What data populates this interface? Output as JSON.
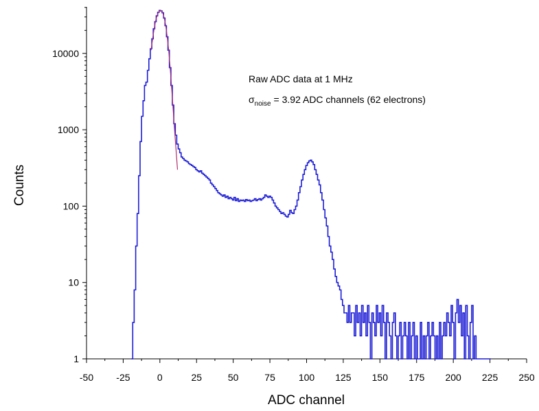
{
  "chart_data": {
    "type": "line",
    "title": "",
    "xlabel": "ADC channel",
    "ylabel": "Counts",
    "xlim": [
      -50,
      250
    ],
    "ylim": [
      1,
      40000
    ],
    "y_scale": "log",
    "grid": false,
    "x_ticks": [
      "-50",
      "-25",
      "0",
      "25",
      "50",
      "75",
      "100",
      "125",
      "150",
      "175",
      "200",
      "225",
      "250"
    ],
    "y_ticks": [
      "1",
      "10",
      "100",
      "1000",
      "10000"
    ],
    "annotations": {
      "line1": "Raw ADC data at 1 MHz",
      "sigma_symbol": "σ",
      "sigma_subscript": "noise",
      "line2_rest": "= 3.92 ADC channels (62 electrons)"
    },
    "series": [
      {
        "color": "#1a1ad6",
        "style": "histogram-step",
        "points": [
          [
            -19,
            1
          ],
          [
            -18,
            3
          ],
          [
            -17,
            8
          ],
          [
            -16,
            30
          ],
          [
            -15,
            80
          ],
          [
            -14,
            250
          ],
          [
            -13,
            700
          ],
          [
            -12,
            1500
          ],
          [
            -11,
            2400
          ],
          [
            -10,
            3800
          ],
          [
            -9,
            4200
          ],
          [
            -8,
            6000
          ],
          [
            -7,
            8500
          ],
          [
            -6,
            11500
          ],
          [
            -5,
            15500
          ],
          [
            -4,
            21000
          ],
          [
            -3,
            26000
          ],
          [
            -2,
            31000
          ],
          [
            -1,
            34500
          ],
          [
            0,
            36500
          ],
          [
            1,
            36000
          ],
          [
            2,
            34000
          ],
          [
            3,
            29000
          ],
          [
            4,
            23000
          ],
          [
            5,
            16500
          ],
          [
            6,
            11000
          ],
          [
            7,
            6500
          ],
          [
            8,
            3800
          ],
          [
            9,
            2100
          ],
          [
            10,
            1200
          ],
          [
            11,
            850
          ],
          [
            12,
            650
          ],
          [
            13,
            560
          ],
          [
            14,
            500
          ],
          [
            15,
            440
          ],
          [
            16,
            420
          ],
          [
            17,
            400
          ],
          [
            18,
            390
          ],
          [
            19,
            380
          ],
          [
            20,
            360
          ],
          [
            21,
            350
          ],
          [
            22,
            340
          ],
          [
            23,
            330
          ],
          [
            24,
            320
          ],
          [
            25,
            300
          ],
          [
            26,
            290
          ],
          [
            27,
            280
          ],
          [
            28,
            290
          ],
          [
            29,
            270
          ],
          [
            30,
            260
          ],
          [
            31,
            250
          ],
          [
            32,
            240
          ],
          [
            33,
            230
          ],
          [
            34,
            220
          ],
          [
            35,
            200
          ],
          [
            36,
            190
          ],
          [
            37,
            180
          ],
          [
            38,
            170
          ],
          [
            39,
            160
          ],
          [
            40,
            150
          ],
          [
            41,
            145
          ],
          [
            42,
            140
          ],
          [
            43,
            135
          ],
          [
            44,
            140
          ],
          [
            45,
            130
          ],
          [
            46,
            135
          ],
          [
            47,
            125
          ],
          [
            48,
            130
          ],
          [
            49,
            125
          ],
          [
            50,
            120
          ],
          [
            51,
            130
          ],
          [
            52,
            118
          ],
          [
            53,
            125
          ],
          [
            54,
            115
          ],
          [
            55,
            120
          ],
          [
            56,
            118
          ],
          [
            57,
            120
          ],
          [
            58,
            115
          ],
          [
            59,
            122
          ],
          [
            60,
            118
          ],
          [
            61,
            120
          ],
          [
            62,
            115
          ],
          [
            63,
            118
          ],
          [
            64,
            120
          ],
          [
            65,
            125
          ],
          [
            66,
            118
          ],
          [
            67,
            122
          ],
          [
            68,
            125
          ],
          [
            69,
            120
          ],
          [
            70,
            125
          ],
          [
            71,
            130
          ],
          [
            72,
            140
          ],
          [
            73,
            135
          ],
          [
            74,
            130
          ],
          [
            75,
            135
          ],
          [
            76,
            130
          ],
          [
            77,
            120
          ],
          [
            78,
            110
          ],
          [
            79,
            100
          ],
          [
            80,
            95
          ],
          [
            81,
            90
          ],
          [
            82,
            85
          ],
          [
            83,
            80
          ],
          [
            84,
            82
          ],
          [
            85,
            78
          ],
          [
            86,
            74
          ],
          [
            87,
            72
          ],
          [
            88,
            78
          ],
          [
            89,
            88
          ],
          [
            90,
            82
          ],
          [
            91,
            80
          ],
          [
            92,
            90
          ],
          [
            93,
            100
          ],
          [
            94,
            120
          ],
          [
            95,
            150
          ],
          [
            96,
            180
          ],
          [
            97,
            220
          ],
          [
            98,
            260
          ],
          [
            99,
            300
          ],
          [
            100,
            340
          ],
          [
            101,
            370
          ],
          [
            102,
            390
          ],
          [
            103,
            400
          ],
          [
            104,
            380
          ],
          [
            105,
            350
          ],
          [
            106,
            300
          ],
          [
            107,
            260
          ],
          [
            108,
            220
          ],
          [
            109,
            190
          ],
          [
            110,
            150
          ],
          [
            111,
            120
          ],
          [
            112,
            90
          ],
          [
            113,
            70
          ],
          [
            114,
            55
          ],
          [
            115,
            40
          ],
          [
            116,
            30
          ],
          [
            117,
            25
          ],
          [
            118,
            20
          ],
          [
            119,
            15
          ],
          [
            120,
            12
          ],
          [
            121,
            10
          ],
          [
            122,
            9
          ],
          [
            123,
            8
          ],
          [
            124,
            6
          ],
          [
            125,
            5
          ],
          [
            126,
            4
          ],
          [
            127,
            4
          ],
          [
            128,
            3
          ],
          [
            129,
            5
          ],
          [
            130,
            3
          ],
          [
            131,
            4
          ],
          [
            132,
            4
          ],
          [
            133,
            2
          ],
          [
            134,
            5
          ],
          [
            135,
            3
          ],
          [
            136,
            4
          ],
          [
            137,
            2
          ],
          [
            138,
            5
          ],
          [
            139,
            3
          ],
          [
            140,
            4
          ],
          [
            141,
            2
          ],
          [
            142,
            5
          ],
          [
            143,
            3
          ],
          [
            144,
            1
          ],
          [
            145,
            4
          ],
          [
            146,
            3
          ],
          [
            147,
            2
          ],
          [
            148,
            5
          ],
          [
            149,
            3
          ],
          [
            150,
            4
          ],
          [
            151,
            2
          ],
          [
            152,
            5
          ],
          [
            153,
            3
          ],
          [
            154,
            1
          ],
          [
            155,
            4
          ],
          [
            156,
            3
          ],
          [
            157,
            2
          ],
          [
            158,
            1
          ],
          [
            159,
            3
          ],
          [
            160,
            4
          ],
          [
            161,
            2
          ],
          [
            162,
            1
          ],
          [
            163,
            2
          ],
          [
            164,
            3
          ],
          [
            165,
            1
          ],
          [
            166,
            2
          ],
          [
            167,
            3
          ],
          [
            168,
            2
          ],
          [
            169,
            1
          ],
          [
            170,
            3
          ],
          [
            171,
            1
          ],
          [
            172,
            2
          ],
          [
            173,
            3
          ],
          [
            174,
            1
          ],
          [
            175,
            2
          ],
          [
            176,
            1
          ],
          [
            177,
            1
          ],
          [
            178,
            3
          ],
          [
            179,
            1
          ],
          [
            180,
            2
          ],
          [
            181,
            1
          ],
          [
            182,
            2
          ],
          [
            183,
            3
          ],
          [
            184,
            1
          ],
          [
            185,
            2
          ],
          [
            186,
            3
          ],
          [
            187,
            2
          ],
          [
            188,
            1
          ],
          [
            189,
            2
          ],
          [
            190,
            1
          ],
          [
            191,
            3
          ],
          [
            192,
            1
          ],
          [
            193,
            2
          ],
          [
            194,
            3
          ],
          [
            195,
            2
          ],
          [
            196,
            4
          ],
          [
            197,
            3
          ],
          [
            198,
            2
          ],
          [
            199,
            5
          ],
          [
            200,
            3
          ],
          [
            201,
            1
          ],
          [
            202,
            4
          ],
          [
            203,
            6
          ],
          [
            204,
            3
          ],
          [
            205,
            5
          ],
          [
            206,
            2
          ],
          [
            207,
            4
          ],
          [
            208,
            1
          ],
          [
            209,
            5
          ],
          [
            210,
            2
          ],
          [
            211,
            1
          ],
          [
            212,
            3
          ],
          [
            213,
            5
          ],
          [
            214,
            1
          ],
          [
            215,
            2
          ],
          [
            216,
            1
          ],
          [
            217,
            1
          ],
          [
            218,
            1
          ],
          [
            219,
            1
          ],
          [
            220,
            1
          ],
          [
            222,
            1
          ],
          [
            225,
            1
          ]
        ]
      },
      {
        "color": "#b03070",
        "style": "line",
        "points": [
          [
            -6,
            11000
          ],
          [
            -5,
            15000
          ],
          [
            -4,
            20500
          ],
          [
            -3,
            26000
          ],
          [
            -2,
            31000
          ],
          [
            -1,
            34500
          ],
          [
            0,
            36500
          ],
          [
            1,
            36000
          ],
          [
            2,
            34000
          ],
          [
            3,
            29000
          ],
          [
            4,
            23000
          ],
          [
            5,
            16500
          ],
          [
            6,
            11000
          ],
          [
            7,
            6500
          ],
          [
            8,
            3600
          ],
          [
            9,
            1900
          ],
          [
            10,
            1000
          ],
          [
            11,
            560
          ],
          [
            12,
            300
          ]
        ]
      }
    ]
  }
}
